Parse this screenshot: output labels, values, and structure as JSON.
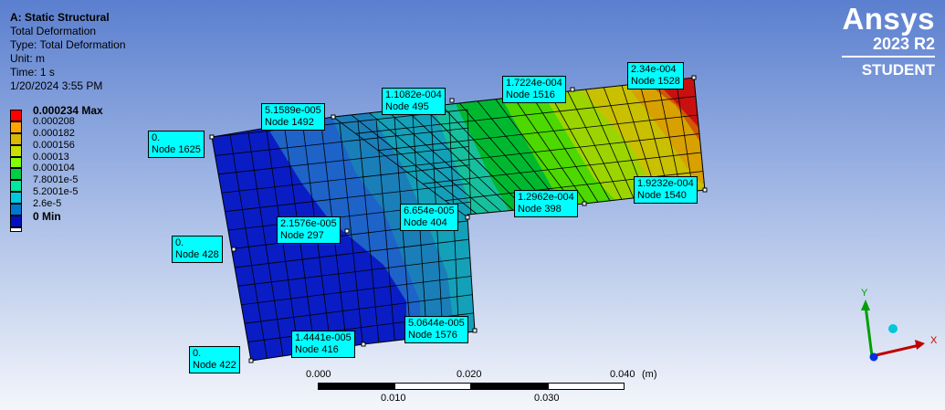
{
  "header": {
    "title": "A: Static Structural",
    "lines": [
      "Total Deformation",
      "Type: Total Deformation",
      "Unit: m",
      "Time: 1 s",
      "1/20/2024 3:55 PM"
    ]
  },
  "brand": {
    "name": "Ansys",
    "version": "2023 R2",
    "tier": "STUDENT",
    "color": "#ffffff"
  },
  "legend": [
    {
      "label": "0.000234 Max",
      "color": "#ff0000",
      "bold": true
    },
    {
      "label": "0.000208",
      "color": "#ffa500"
    },
    {
      "label": "0.000182",
      "color": "#d8b800"
    },
    {
      "label": "0.000156",
      "color": "#c8e000"
    },
    {
      "label": "0.00013",
      "color": "#7fff00"
    },
    {
      "label": "0.000104",
      "color": "#00cc44"
    },
    {
      "label": "7.8001e-5",
      "color": "#00e8a0"
    },
    {
      "label": "5.2001e-5",
      "color": "#00c8e0"
    },
    {
      "label": "2.6e-5",
      "color": "#0078d0"
    },
    {
      "label": "0 Min",
      "color": "#0010c0",
      "bold": true
    }
  ],
  "probes": [
    {
      "value": "0.",
      "node": "Node 1625"
    },
    {
      "value": "5.1589e-005",
      "node": "Node 1492"
    },
    {
      "value": "1.1082e-004",
      "node": "Node 495"
    },
    {
      "value": "1.7224e-004",
      "node": "Node 1516"
    },
    {
      "value": "2.34e-004",
      "node": "Node 1528"
    },
    {
      "value": "1.9232e-004",
      "node": "Node 1540"
    },
    {
      "value": "1.2962e-004",
      "node": "Node 398"
    },
    {
      "value": "6.654e-005",
      "node": "Node 404"
    },
    {
      "value": "2.1576e-005",
      "node": "Node 297"
    },
    {
      "value": "0.",
      "node": "Node 428"
    },
    {
      "value": "5.0644e-005",
      "node": "Node 1576"
    },
    {
      "value": "1.4441e-005",
      "node": "Node 416"
    },
    {
      "value": "0.",
      "node": "Node 422"
    }
  ],
  "scale_bar": {
    "top_labels": [
      "0.000",
      "0.020",
      "0.040"
    ],
    "unit": "(m)",
    "bottom_labels": [
      "0.010",
      "0.030"
    ]
  },
  "triad": {
    "y_label": "Y",
    "x_label": "X"
  }
}
